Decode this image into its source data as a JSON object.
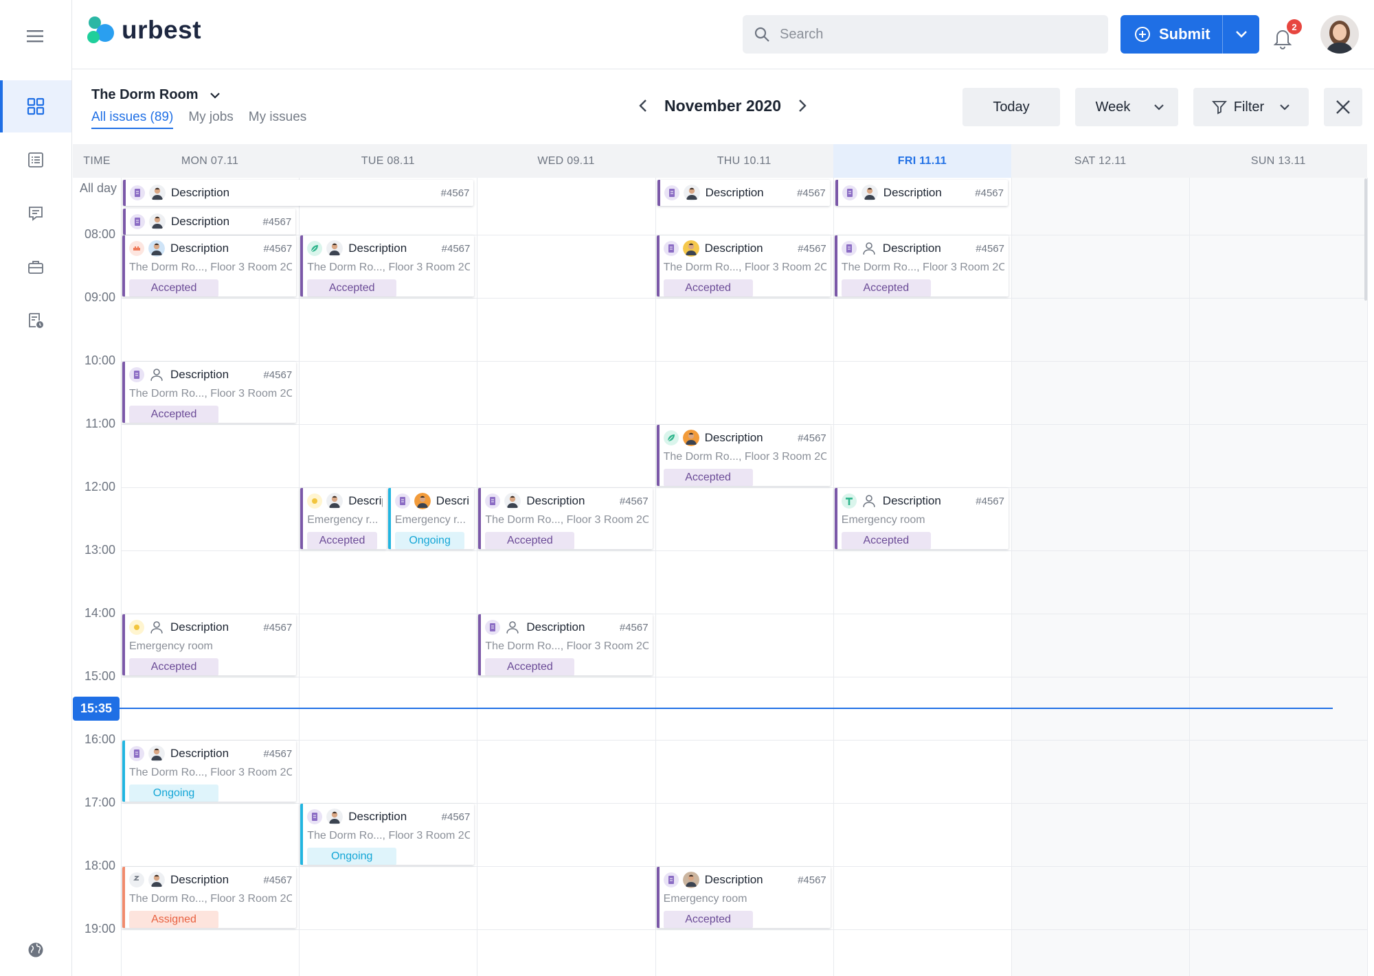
{
  "brand": {
    "name": "urbest"
  },
  "search": {
    "placeholder": "Search"
  },
  "submit": {
    "label": "Submit"
  },
  "notifications": {
    "count": "2"
  },
  "venue": {
    "name": "The Dorm Room"
  },
  "tabs": [
    {
      "label": "All issues (89)",
      "active": true
    },
    {
      "label": "My jobs",
      "active": false
    },
    {
      "label": "My issues",
      "active": false
    }
  ],
  "period": {
    "label": "November 2020"
  },
  "toolbar": {
    "today": "Today",
    "view": "Week",
    "filter": "Filter"
  },
  "calendar": {
    "time_header": "TIME",
    "all_day": "All day",
    "days": [
      {
        "label": "MON 07.11",
        "today": false
      },
      {
        "label": "TUE 08.11",
        "today": false
      },
      {
        "label": "WED 09.11",
        "today": false
      },
      {
        "label": "THU 10.11",
        "today": false
      },
      {
        "label": "FRI 11.11",
        "today": true
      },
      {
        "label": "SAT 12.11",
        "today": false
      },
      {
        "label": "SUN 13.11",
        "today": false
      }
    ],
    "hours": [
      "08:00",
      "09:00",
      "10:00",
      "11:00",
      "12:00",
      "13:00",
      "14:00",
      "15:00",
      "16:00",
      "17:00",
      "18:00",
      "19:00"
    ],
    "now": "15:35"
  },
  "status_colors": {
    "Accepted": "#6a4a96",
    "Ongoing": "#14a6d6",
    "Assigned": "#e8603f"
  },
  "events": [
    {
      "allday": true,
      "day": 0,
      "span": 2,
      "row": 0,
      "title": "Description",
      "id": "#4567",
      "category": "doc-icon",
      "user": "person-photo",
      "accent": "#7b58a8"
    },
    {
      "allday": true,
      "day": 0,
      "span": 1,
      "row": 1,
      "title": "Description",
      "id": "#4567",
      "category": "doc-icon",
      "user": "person-photo",
      "accent": "#7b58a8"
    },
    {
      "allday": true,
      "day": 3,
      "span": 1,
      "row": 0,
      "title": "Description",
      "id": "#4567",
      "category": "doc-icon",
      "user": "person-photo",
      "accent": "#7b58a8"
    },
    {
      "allday": true,
      "day": 4,
      "span": 1,
      "row": 0,
      "title": "Description",
      "id": "#4567",
      "category": "doc-icon",
      "user": "person-photo",
      "accent": "#7b58a8"
    },
    {
      "day": 0,
      "start": 8,
      "end": 9,
      "title": "Description",
      "id": "#4567",
      "location": "The Dorm Ro..., Floor 3 Room 2C",
      "status": "Accepted",
      "category": "wrench-icon",
      "user": "person-photo-blue",
      "accent": "#7b58a8"
    },
    {
      "day": 1,
      "start": 8,
      "end": 9,
      "title": "Description",
      "id": "#4567",
      "location": "The Dorm Ro..., Floor 3 Room 2C",
      "status": "Accepted",
      "category": "leaf-icon",
      "user": "person-photo",
      "accent": "#7b58a8"
    },
    {
      "day": 3,
      "start": 8,
      "end": 9,
      "title": "Description",
      "id": "#4567",
      "location": "The Dorm Ro..., Floor 3 Room 2C",
      "status": "Accepted",
      "category": "doc-icon",
      "user": "person-photo-yellow",
      "accent": "#7b58a8"
    },
    {
      "day": 4,
      "start": 8,
      "end": 9,
      "title": "Description",
      "id": "#4567",
      "location": "The Dorm Ro..., Floor 3 Room 2C",
      "status": "Accepted",
      "category": "doc-icon",
      "user": "user-outline-icon",
      "accent": "#7b58a8"
    },
    {
      "day": 0,
      "start": 10,
      "end": 11,
      "title": "Description",
      "id": "#4567",
      "location": "The Dorm Ro..., Floor 3 Room 2C",
      "status": "Accepted",
      "category": "doc-icon",
      "user": "user-outline-icon",
      "accent": "#7b58a8"
    },
    {
      "day": 3,
      "start": 11,
      "end": 12,
      "title": "Description",
      "id": "#4567",
      "location": "The Dorm Ro..., Floor 3 Room 2C",
      "status": "Accepted",
      "category": "leaf-icon",
      "user": "person-photo-orange",
      "accent": "#7b58a8"
    },
    {
      "day": 1,
      "start": 12,
      "end": 13,
      "half": 0,
      "title": "Description",
      "id": "",
      "location": "Emergency r...",
      "status": "Accepted",
      "category": "sun-icon",
      "user": "person-photo",
      "accent": "#7b58a8"
    },
    {
      "day": 1,
      "start": 12,
      "end": 13,
      "half": 1,
      "title": "Description",
      "id": "",
      "location": "Emergency r...",
      "status": "Ongoing",
      "category": "doc-icon",
      "user": "person-photo-orange",
      "accent": "#21b5e0"
    },
    {
      "day": 2,
      "start": 12,
      "end": 13,
      "title": "Description",
      "id": "#4567",
      "location": "The Dorm Ro..., Floor 3 Room 2C",
      "status": "Accepted",
      "category": "doc-icon",
      "user": "person-photo",
      "accent": "#7b58a8"
    },
    {
      "day": 4,
      "start": 12,
      "end": 13,
      "title": "Description",
      "id": "#4567",
      "location": "Emergency room",
      "status": "Accepted",
      "category": "t-icon",
      "user": "user-outline-icon",
      "accent": "#7b58a8"
    },
    {
      "day": 0,
      "start": 14,
      "end": 15,
      "title": "Description",
      "id": "#4567",
      "location": "Emergency room",
      "status": "Accepted",
      "category": "sun-icon",
      "user": "user-outline-icon",
      "accent": "#7b58a8"
    },
    {
      "day": 2,
      "start": 14,
      "end": 15,
      "title": "Description",
      "id": "#4567",
      "location": "The Dorm Ro..., Floor 3 Room 2C",
      "status": "Accepted",
      "category": "doc-icon",
      "user": "user-outline-icon",
      "accent": "#7b58a8"
    },
    {
      "day": 0,
      "start": 16,
      "end": 17,
      "title": "Description",
      "id": "#4567",
      "location": "The Dorm Ro..., Floor 3 Room 2C",
      "status": "Ongoing",
      "category": "doc-icon",
      "user": "person-photo",
      "accent": "#21b5e0"
    },
    {
      "day": 1,
      "start": 17,
      "end": 18,
      "title": "Description",
      "id": "#4567",
      "location": "The Dorm Ro..., Floor 3 Room 2C",
      "status": "Ongoing",
      "category": "doc-icon",
      "user": "person-photo",
      "accent": "#21b5e0"
    },
    {
      "day": 0,
      "start": 18,
      "end": 19,
      "title": "Description",
      "id": "#4567",
      "location": "The Dorm Ro..., Floor 3 Room 2C",
      "status": "Assigned",
      "category": "hook-icon",
      "user": "person-photo",
      "accent": "#f08a6c"
    },
    {
      "day": 3,
      "start": 18,
      "end": 19,
      "title": "Description",
      "id": "#4567",
      "location": "Emergency room",
      "status": "Accepted",
      "category": "doc-icon",
      "user": "person-photo-brown",
      "accent": "#7b58a8"
    }
  ]
}
